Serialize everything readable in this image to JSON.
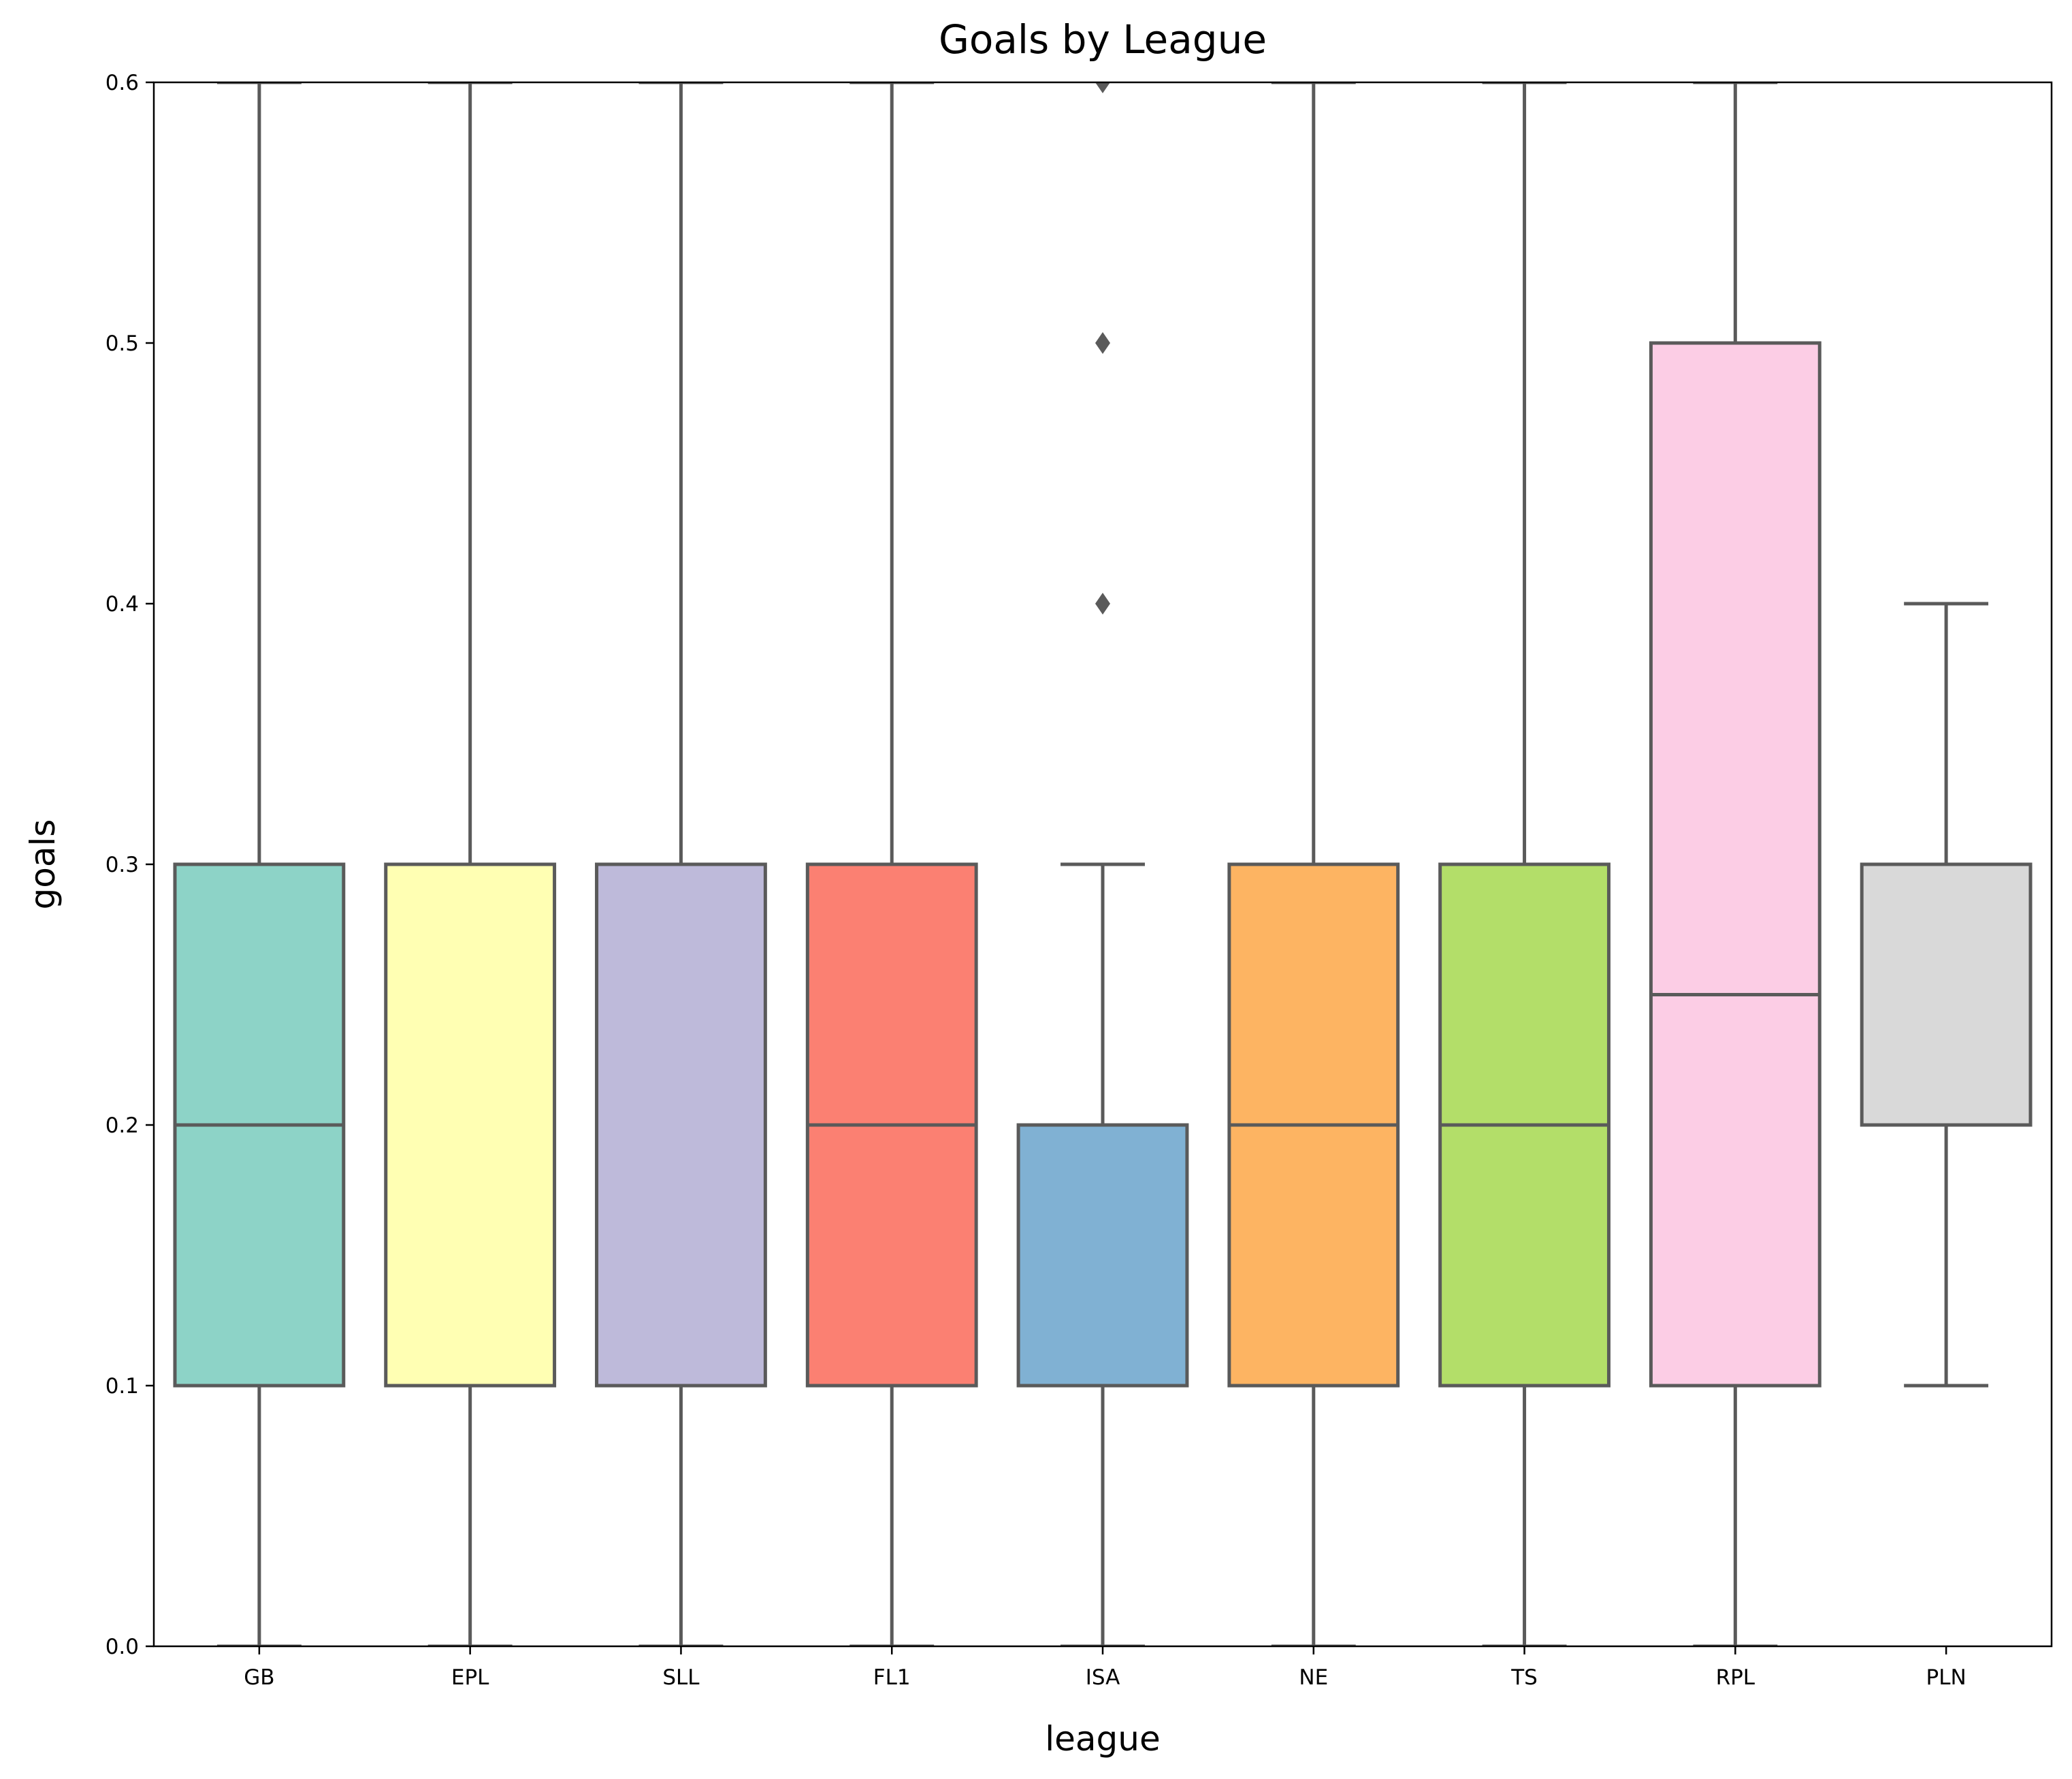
{
  "chart_data": {
    "type": "box",
    "title": "Goals by League",
    "xlabel": "league",
    "ylabel": "goals",
    "ylim": [
      0.0,
      0.6
    ],
    "yticks": [
      "0.0",
      "0.1",
      "0.2",
      "0.3",
      "0.4",
      "0.5",
      "0.6"
    ],
    "categories": [
      "GB",
      "EPL",
      "SLL",
      "FL1",
      "ISA",
      "NE",
      "TS",
      "RPL",
      "PLN"
    ],
    "boxes": [
      {
        "category": "GB",
        "whisker_low": 0.0,
        "q1": 0.1,
        "median": 0.2,
        "q3": 0.3,
        "whisker_high": 0.6,
        "fliers": [],
        "color": "#8dd3c7"
      },
      {
        "category": "EPL",
        "whisker_low": 0.0,
        "q1": 0.1,
        "median": 0.3,
        "q3": 0.3,
        "whisker_high": 0.6,
        "fliers": [],
        "color": "#ffffb3"
      },
      {
        "category": "SLL",
        "whisker_low": 0.0,
        "q1": 0.1,
        "median": 0.3,
        "q3": 0.3,
        "whisker_high": 0.6,
        "fliers": [],
        "color": "#bebada"
      },
      {
        "category": "FL1",
        "whisker_low": 0.0,
        "q1": 0.1,
        "median": 0.2,
        "q3": 0.3,
        "whisker_high": 0.6,
        "fliers": [],
        "color": "#fb8072"
      },
      {
        "category": "ISA",
        "whisker_low": 0.0,
        "q1": 0.1,
        "median": 0.2,
        "q3": 0.2,
        "whisker_high": 0.3,
        "fliers": [
          0.4,
          0.5,
          0.6
        ],
        "color": "#80b1d3"
      },
      {
        "category": "NE",
        "whisker_low": 0.0,
        "q1": 0.1,
        "median": 0.2,
        "q3": 0.3,
        "whisker_high": 0.6,
        "fliers": [],
        "color": "#fdb462"
      },
      {
        "category": "TS",
        "whisker_low": 0.0,
        "q1": 0.1,
        "median": 0.2,
        "q3": 0.3,
        "whisker_high": 0.6,
        "fliers": [],
        "color": "#b3de69"
      },
      {
        "category": "RPL",
        "whisker_low": 0.0,
        "q1": 0.1,
        "median": 0.25,
        "q3": 0.5,
        "whisker_high": 0.6,
        "fliers": [],
        "color": "#fccde5"
      },
      {
        "category": "PLN",
        "whisker_low": 0.1,
        "q1": 0.2,
        "median": 0.3,
        "q3": 0.3,
        "whisker_high": 0.4,
        "fliers": [],
        "color": "#d9d9d9"
      }
    ],
    "grid": false,
    "line_color": "#5a5a5a"
  }
}
